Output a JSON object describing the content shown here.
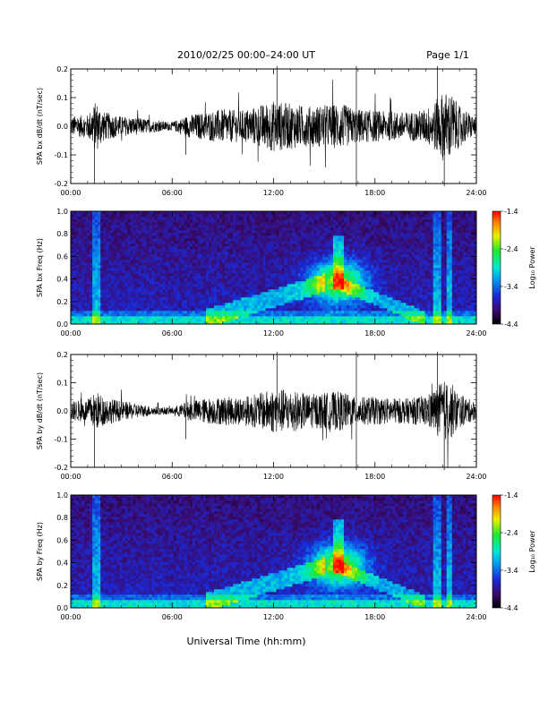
{
  "header": {
    "title": "2010/02/25  00:00–24:00 UT",
    "page": "Page 1/1"
  },
  "footer": {
    "xlabel": "Universal Time (hh:mm)"
  },
  "chart_data": [
    {
      "type": "line",
      "ylabel": "SPA bx dB/dt (nT/sec)",
      "ylim": [
        -0.2,
        0.2
      ],
      "yticks": [
        "-0.2",
        "-0.1",
        "0.0",
        "0.1",
        "0.2"
      ],
      "xticks": [
        "00:00",
        "06:00",
        "12:00",
        "18:00",
        "24:00"
      ],
      "x_hours": [
        0,
        1,
        1.5,
        2,
        3,
        4,
        5,
        6,
        7,
        8,
        9,
        10,
        11,
        12,
        13,
        14,
        15,
        16,
        16.8,
        17,
        18,
        19,
        20,
        21,
        21.6,
        22,
        22.5,
        23,
        24
      ],
      "envelope": [
        0.035,
        0.04,
        0.09,
        0.05,
        0.035,
        0.03,
        0.02,
        0.015,
        0.04,
        0.05,
        0.06,
        0.055,
        0.07,
        0.09,
        0.08,
        0.07,
        0.075,
        0.08,
        0.06,
        0.06,
        0.055,
        0.05,
        0.05,
        0.06,
        0.09,
        0.12,
        0.12,
        0.07,
        0.03
      ]
    },
    {
      "type": "heatmap",
      "ylabel": "SPA bx Freq (Hz)",
      "ylim": [
        0.0,
        1.0
      ],
      "yticks": [
        "0.0",
        "0.2",
        "0.4",
        "0.6",
        "0.8",
        "1.0"
      ],
      "xticks": [
        "00:00",
        "06:00",
        "12:00",
        "18:00",
        "24:00"
      ],
      "colorbar": {
        "label": "Log₁₀ Power",
        "ticks": [
          "-1.4",
          "-2.4",
          "-3.4",
          "-4.4"
        ],
        "range": [
          -4.4,
          -1.4
        ]
      }
    },
    {
      "type": "line",
      "ylabel": "SPA by dB/dt (nT/sec)",
      "ylim": [
        -0.2,
        0.2
      ],
      "yticks": [
        "-0.2",
        "-0.1",
        "0.0",
        "0.1",
        "0.2"
      ],
      "xticks": [
        "00:00",
        "06:00",
        "12:00",
        "18:00",
        "24:00"
      ],
      "x_hours": [
        0,
        1,
        1.5,
        2,
        3,
        4,
        5,
        6,
        7,
        8,
        9,
        10,
        11,
        12,
        13,
        14,
        15,
        16,
        16.8,
        17,
        18,
        19,
        20,
        21,
        21.6,
        22,
        22.5,
        23,
        24
      ],
      "envelope": [
        0.035,
        0.04,
        0.07,
        0.05,
        0.035,
        0.025,
        0.015,
        0.012,
        0.035,
        0.045,
        0.05,
        0.05,
        0.06,
        0.08,
        0.075,
        0.06,
        0.065,
        0.07,
        0.05,
        0.05,
        0.05,
        0.045,
        0.045,
        0.055,
        0.08,
        0.11,
        0.1,
        0.06,
        0.03
      ]
    },
    {
      "type": "heatmap",
      "ylabel": "SPA by Freq (Hz)",
      "ylim": [
        0.0,
        1.0
      ],
      "yticks": [
        "0.0",
        "0.2",
        "0.4",
        "0.6",
        "0.8",
        "1.0"
      ],
      "xticks": [
        "00:00",
        "06:00",
        "12:00",
        "18:00",
        "24:00"
      ],
      "colorbar": {
        "label": "Log₁₀ Power",
        "ticks": [
          "-1.4",
          "-2.4",
          "-3.4",
          "-4.4"
        ],
        "range": [
          -4.4,
          -1.4
        ]
      }
    }
  ]
}
